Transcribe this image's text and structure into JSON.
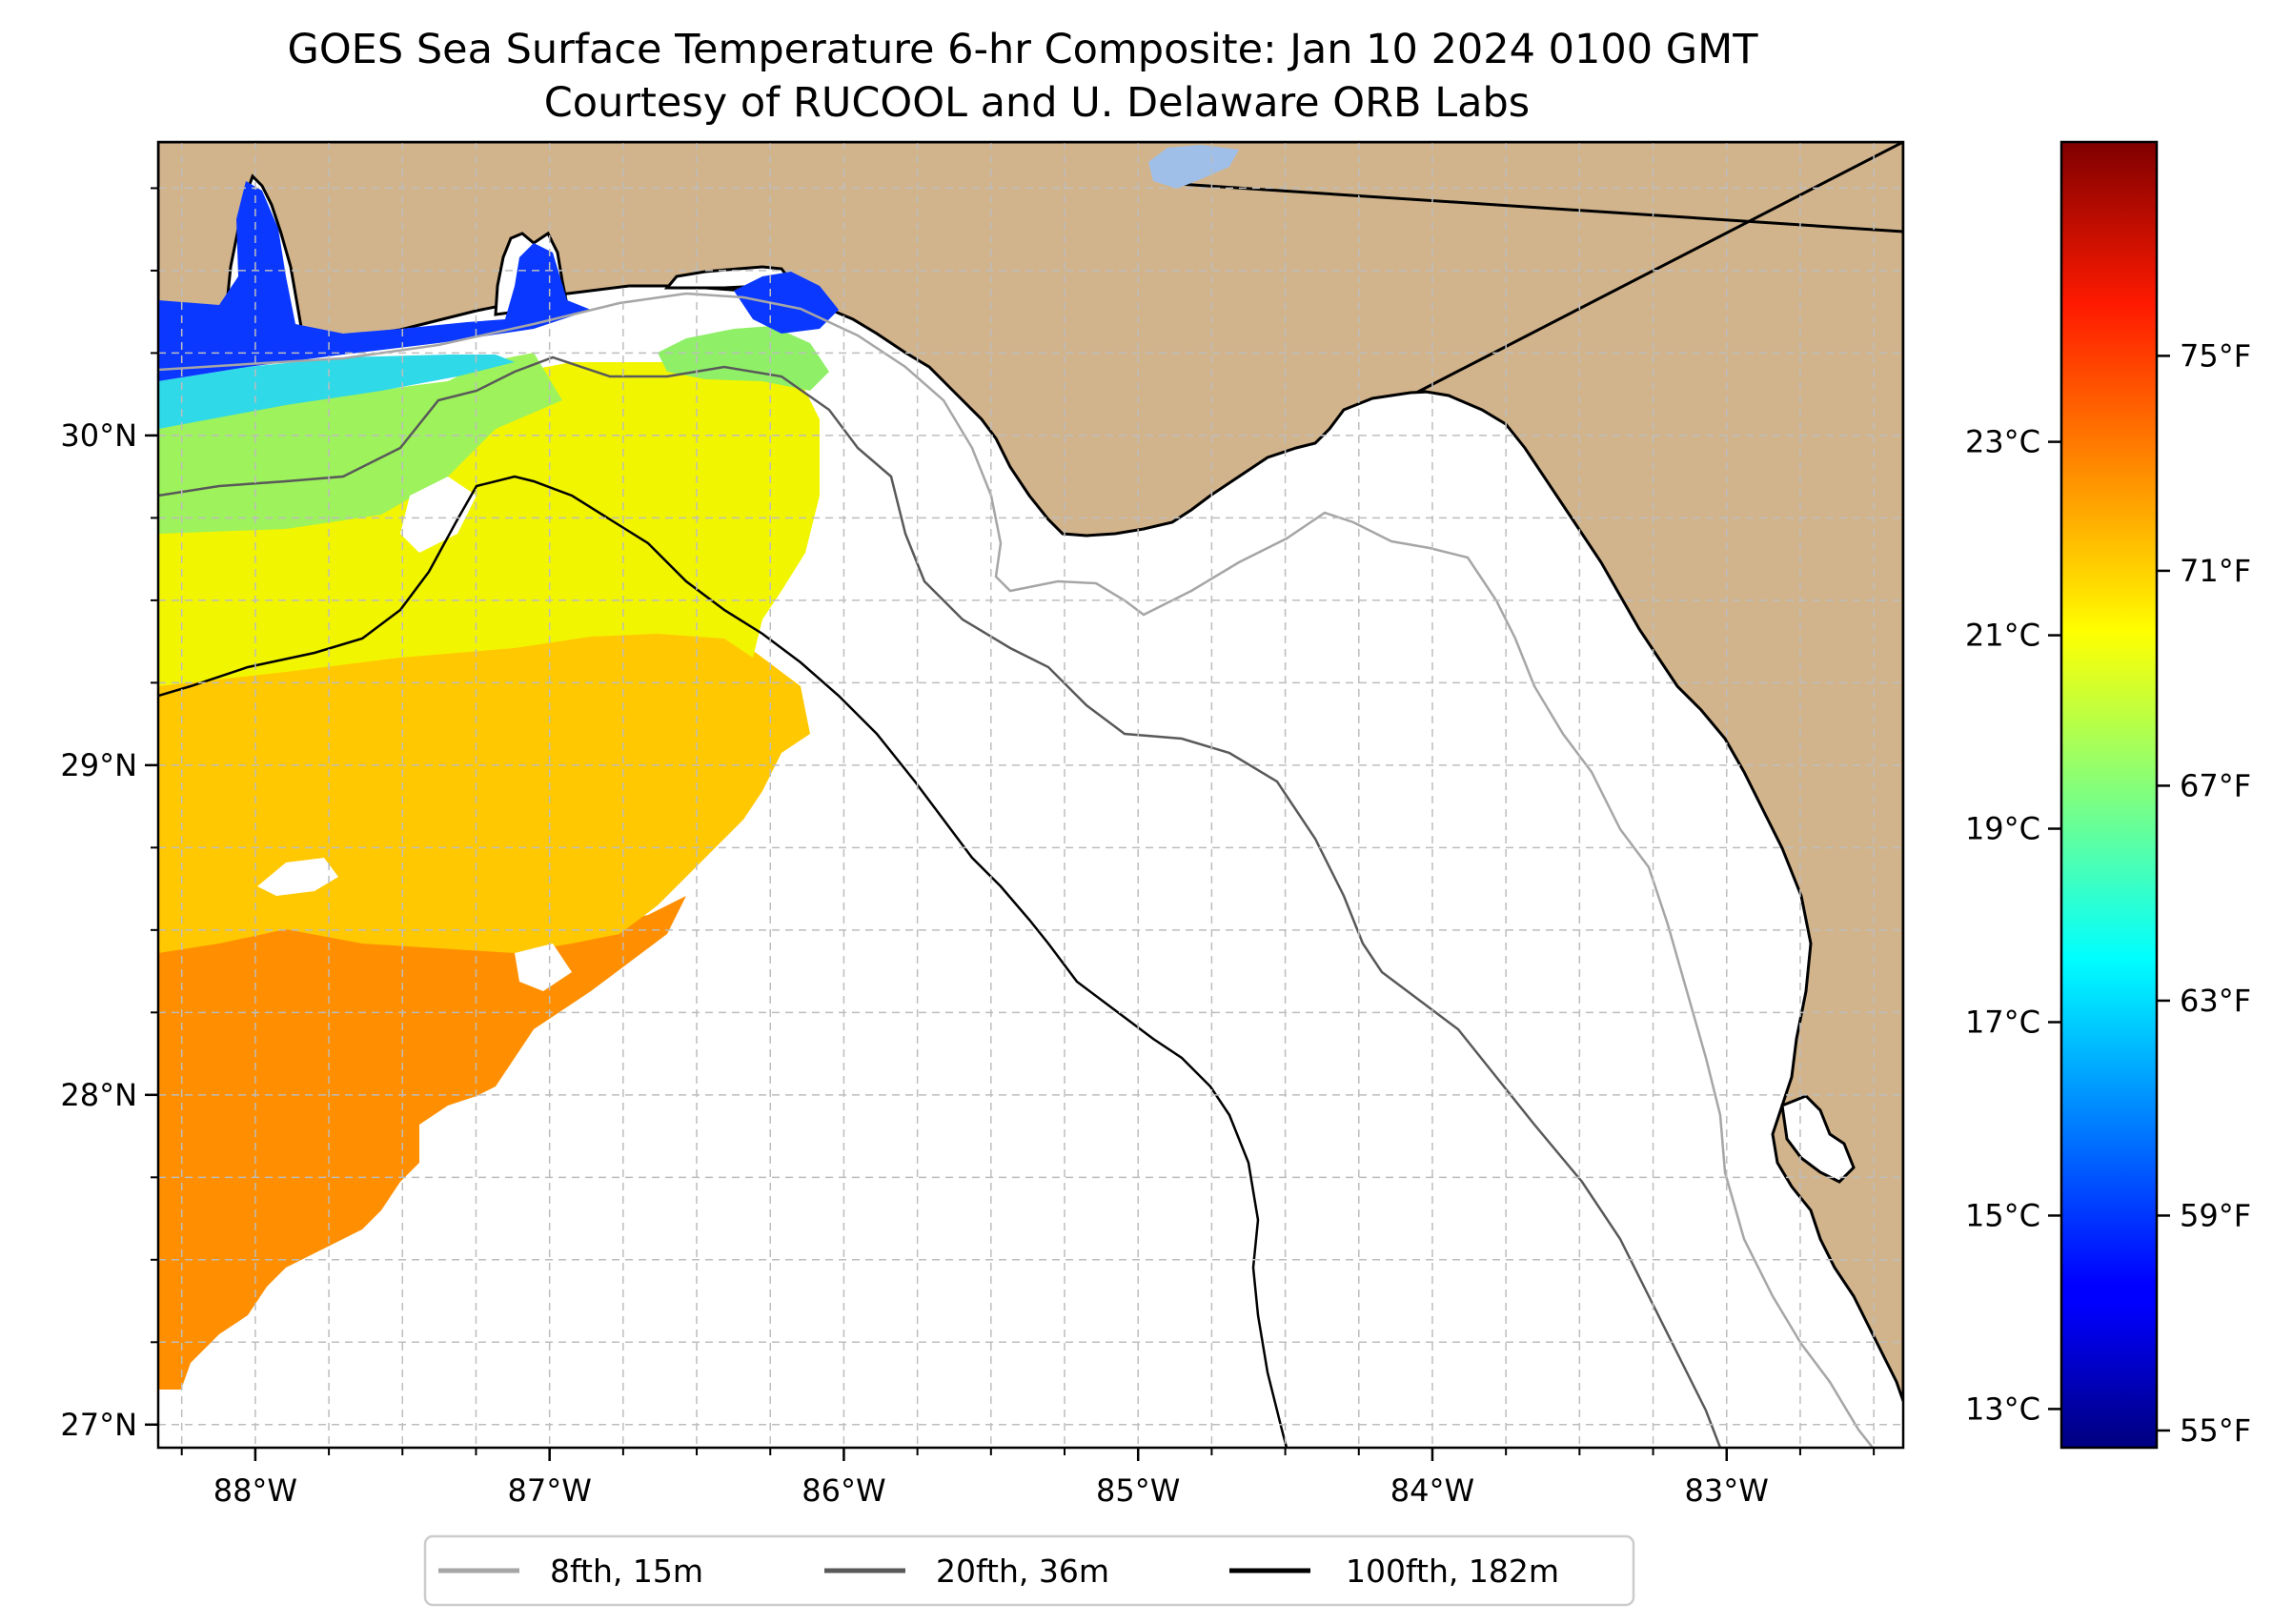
{
  "title": {
    "line1": "GOES Sea Surface Temperature 6-hr Composite: Jan 10 2024 0100 GMT",
    "line2": "Courtesy of RUCOOL and U. Delaware ORB Labs"
  },
  "map": {
    "lon_range": [
      -88.33,
      -82.4
    ],
    "lat_range": [
      26.93,
      30.89
    ],
    "land_color": "#d2b48c",
    "ocean_color": "#ffffff",
    "gridlines": true,
    "longitude_ticks": [
      {
        "value": -88,
        "label": "88°W"
      },
      {
        "value": -87,
        "label": "87°W"
      },
      {
        "value": -86,
        "label": "86°W"
      },
      {
        "value": -85,
        "label": "85°W"
      },
      {
        "value": -84,
        "label": "84°W"
      },
      {
        "value": -83,
        "label": "83°W"
      }
    ],
    "latitude_ticks": [
      {
        "value": 27,
        "label": "27°N"
      },
      {
        "value": 28,
        "label": "28°N"
      },
      {
        "value": 29,
        "label": "29°N"
      },
      {
        "value": 30,
        "label": "30°N"
      }
    ]
  },
  "colorbar": {
    "colormap": "jet",
    "celsius_range": [
      12.6,
      26.1
    ],
    "celsius_ticks": [
      {
        "value": 13,
        "label": "13°C"
      },
      {
        "value": 15,
        "label": "15°C"
      },
      {
        "value": 17,
        "label": "17°C"
      },
      {
        "value": 19,
        "label": "19°C"
      },
      {
        "value": 21,
        "label": "21°C"
      },
      {
        "value": 23,
        "label": "23°C"
      }
    ],
    "fahrenheit_ticks": [
      {
        "value": 55,
        "label": "55°F"
      },
      {
        "value": 59,
        "label": "59°F"
      },
      {
        "value": 63,
        "label": "63°F"
      },
      {
        "value": 67,
        "label": "67°F"
      },
      {
        "value": 71,
        "label": "71°F"
      },
      {
        "value": 75,
        "label": "75°F"
      }
    ]
  },
  "legend": {
    "placement": "bottom",
    "items": [
      {
        "label": "8fth, 15m",
        "color": "#a6a6a6"
      },
      {
        "label": "20fth, 36m",
        "color": "#595959"
      },
      {
        "label": "100fth, 182m",
        "color": "#000000"
      }
    ]
  }
}
